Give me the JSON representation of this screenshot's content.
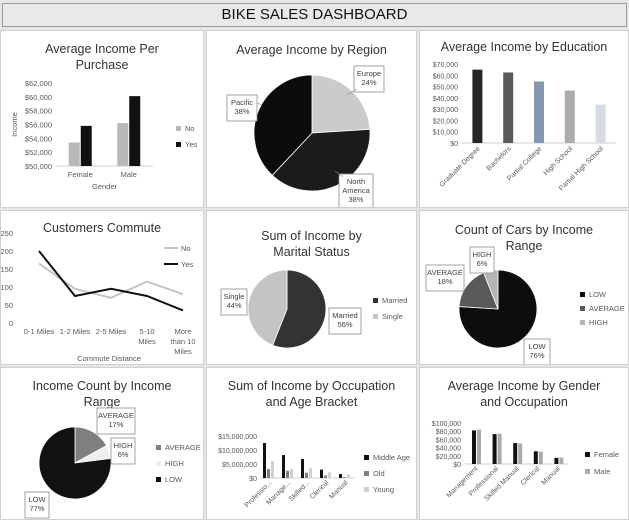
{
  "dashboard": {
    "title": "BIKE SALES DASHBOARD"
  },
  "chart_data": [
    {
      "id": "avg-income-purchase",
      "type": "bar",
      "title": "Average Income Per Purchase",
      "xlabel": "Gender",
      "ylabel": "Income",
      "categories": [
        "Female",
        "Male"
      ],
      "series": [
        {
          "name": "No",
          "values": [
            53400,
            56200
          ],
          "color": "#b8b8b8"
        },
        {
          "name": "Yes",
          "values": [
            55800,
            60100
          ],
          "color": "#111111"
        }
      ],
      "ylim": [
        50000,
        62000
      ],
      "yticks": [
        "$50,000",
        "$52,000",
        "$54,000",
        "$56,000",
        "$58,000",
        "$60,000",
        "$62,000"
      ],
      "legend": "right"
    },
    {
      "id": "avg-income-region",
      "type": "pie",
      "title": "Average Income by Region",
      "slices": [
        {
          "label": "Europe",
          "value": 24,
          "text": "24%",
          "color": "#cbcbcb"
        },
        {
          "label": "North America",
          "value": 38,
          "text": "38%",
          "color": "#1b1b1b"
        },
        {
          "label": "Pacific",
          "value": 38,
          "text": "38%",
          "color": "#0c0c0c"
        }
      ]
    },
    {
      "id": "avg-income-education",
      "type": "bar",
      "title": "Average Income by Education",
      "categories": [
        "Graduate Degree",
        "Bachelors",
        "Partial College",
        "High School",
        "Partial High School"
      ],
      "values": [
        65000,
        62500,
        54500,
        46500,
        34000
      ],
      "colors": [
        "#262626",
        "#595959",
        "#8497b0",
        "#afabab",
        "#d6dce4"
      ],
      "ylim": [
        0,
        70000
      ],
      "yticks": [
        "$0",
        "$10,000",
        "$20,000",
        "$30,000",
        "$40,000",
        "$50,000",
        "$60,000",
        "$70,000"
      ]
    },
    {
      "id": "customers-commute",
      "type": "line",
      "title": "Customers Commute",
      "xlabel": "Commute Distance",
      "categories": [
        "0-1 Miles",
        "1-2 Miles",
        "2-5 Miles",
        "5-10 Miles",
        "More than 10 Miles"
      ],
      "series": [
        {
          "name": "No",
          "values": [
            165,
            95,
            70,
            115,
            80
          ],
          "color": "#c4c4c4"
        },
        {
          "name": "Yes",
          "values": [
            200,
            75,
            95,
            75,
            35
          ],
          "color": "#111111"
        }
      ],
      "ylim": [
        0,
        250
      ],
      "yticks": [
        "0",
        "50",
        "100",
        "150",
        "200",
        "250"
      ],
      "legend": "right"
    },
    {
      "id": "income-marital",
      "type": "pie",
      "title": "Sum of Income by Marital Status",
      "slices": [
        {
          "label": "Married",
          "value": 56,
          "text": "56%",
          "color": "#333333"
        },
        {
          "label": "Single",
          "value": 44,
          "text": "44%",
          "color": "#c4c4c4"
        }
      ],
      "legend": "right"
    },
    {
      "id": "cars-income-range",
      "type": "pie",
      "title": "Count of Cars by Income Range",
      "slices": [
        {
          "label": "LOW",
          "value": 76,
          "text": "76%",
          "color": "#0d0d0d"
        },
        {
          "label": "AVERAGE",
          "value": 18,
          "text": "18%",
          "color": "#595959"
        },
        {
          "label": "HIGH",
          "value": 6,
          "text": "6%",
          "color": "#b5b5b5"
        }
      ],
      "legend": "right"
    },
    {
      "id": "income-count-range",
      "type": "pie",
      "title": "Income Count by Income Range",
      "slices": [
        {
          "label": "AVERAGE",
          "value": 17,
          "text": "17%",
          "color": "#7f7f7f"
        },
        {
          "label": "HIGH",
          "value": 6,
          "text": "6%",
          "color": "#eeeeee"
        },
        {
          "label": "LOW",
          "value": 77,
          "text": "77%",
          "color": "#111111"
        }
      ],
      "legend": "right"
    },
    {
      "id": "income-occupation-age",
      "type": "bar",
      "title": "Sum of Income by Occupation and Age Bracket",
      "categories": [
        "Professio...",
        "Manage...",
        "Skilled...",
        "Clerical",
        "Manual"
      ],
      "series": [
        {
          "name": "Middle Age",
          "values": [
            12500000,
            8200000,
            6800000,
            3000000,
            1400000
          ],
          "color": "#111111"
        },
        {
          "name": "Old",
          "values": [
            3200000,
            2600000,
            1900000,
            900000,
            300000
          ],
          "color": "#7f7f7f"
        },
        {
          "name": "Young",
          "values": [
            6000000,
            3200000,
            3500000,
            2000000,
            1200000
          ],
          "color": "#d0d0d0"
        }
      ],
      "ylim": [
        0,
        15000000
      ],
      "yticks": [
        "$0",
        "$5,000,000",
        "$10,000,000",
        "$15,000,000"
      ],
      "ytick_values": [
        0,
        5000000,
        10000000,
        15000000
      ],
      "legend": "right"
    },
    {
      "id": "avg-income-gender-occupation",
      "type": "bar",
      "title": "Average Income by Gender and Occupation",
      "categories": [
        "Management",
        "Professional",
        "Skilled Manual",
        "Clerical",
        "Manual"
      ],
      "series": [
        {
          "name": "Female",
          "values": [
            82000,
            73000,
            51000,
            31000,
            15000
          ],
          "color": "#111111"
        },
        {
          "name": "Male",
          "values": [
            84000,
            74000,
            50000,
            30000,
            16000
          ],
          "color": "#aaaaaa"
        }
      ],
      "ylim": [
        0,
        100000
      ],
      "yticks": [
        "$0",
        "$20,000",
        "$40,000",
        "$60,000",
        "$80,000",
        "$100,000"
      ],
      "legend": "right"
    }
  ]
}
